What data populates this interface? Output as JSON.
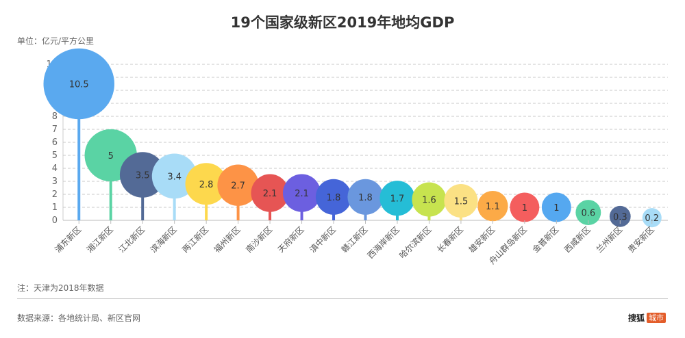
{
  "header": {
    "title": "19个国家级新区2019年地均GDP",
    "unit": "单位：亿元/平方公里"
  },
  "footer": {
    "note": "注：天津为2018年数据",
    "source": "数据来源：各地统计局、新区官网",
    "brand_name": "搜狐",
    "brand_badge": "城市"
  },
  "chart_data": {
    "type": "scatter",
    "subtype": "lollipop-bubble",
    "title": "19个国家级新区2019年地均GDP",
    "xlabel": "",
    "ylabel": "亿元/平方公里",
    "ylim": [
      0,
      12
    ],
    "yticks": [
      0,
      1,
      2,
      3,
      4,
      5,
      6,
      7,
      8,
      9,
      10,
      11,
      12
    ],
    "grid": true,
    "legend": "none",
    "categories": [
      "浦东新区",
      "湘江新区",
      "江北新区",
      "滨海新区",
      "两江新区",
      "福州新区",
      "南沙新区",
      "天府新区",
      "滇中新区",
      "赣江新区",
      "西海岸新区",
      "哈尔滨新区",
      "长春新区",
      "雄安新区",
      "舟山群岛新区",
      "金普新区",
      "西咸新区",
      "兰州新区",
      "贵安新区"
    ],
    "values": [
      10.5,
      5,
      3.5,
      3.4,
      2.8,
      2.7,
      2.1,
      2.1,
      1.8,
      1.8,
      1.7,
      1.6,
      1.5,
      1.1,
      1,
      1,
      0.6,
      0.3,
      0.2
    ],
    "colors": [
      "#5aa9ef",
      "#5ad3a4",
      "#536a96",
      "#a8dcf7",
      "#fdd84d",
      "#fd9346",
      "#e65554",
      "#6c5fe0",
      "#4565d8",
      "#6a97de",
      "#25bdd6",
      "#c7e34f",
      "#fbe184",
      "#fcaa47",
      "#f45e5e",
      "#55a8f0",
      "#5ad3a4",
      "#536a96",
      "#a8dcf7"
    ]
  }
}
